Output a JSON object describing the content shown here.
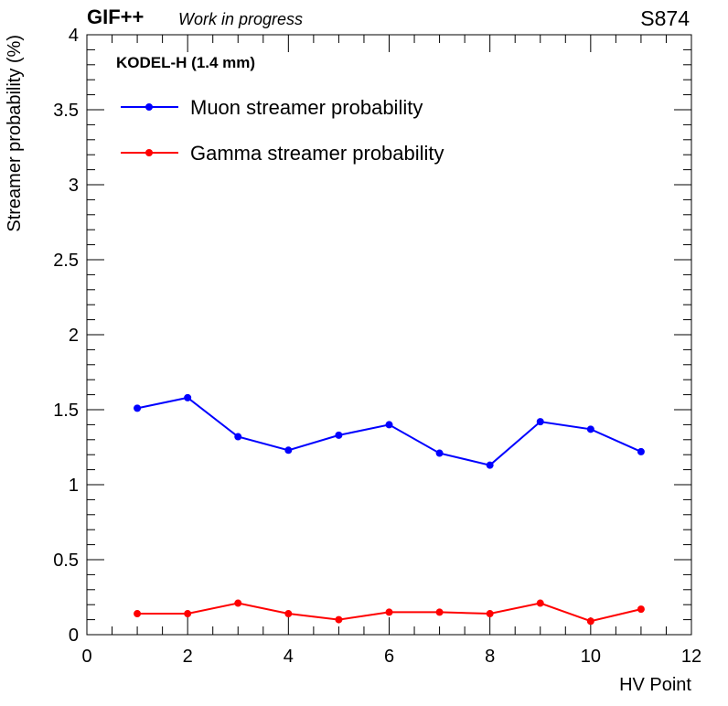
{
  "header": {
    "brand": "GIF++",
    "status": "Work in progress",
    "detector_id": "S874"
  },
  "chart_data": {
    "type": "line",
    "subtitle": "KODEL-H (1.4 mm)",
    "xlabel": "HV Point",
    "ylabel": "Streamer probability (%)",
    "xlim": [
      0,
      12
    ],
    "ylim": [
      0,
      4
    ],
    "x_ticks": [
      0,
      2,
      4,
      6,
      8,
      10,
      12
    ],
    "y_ticks": [
      0,
      0.5,
      1,
      1.5,
      2,
      2.5,
      3,
      3.5,
      4
    ],
    "legend_position": "top-left",
    "grid": false,
    "x": [
      1,
      2,
      3,
      4,
      5,
      6,
      7,
      8,
      9,
      10,
      11
    ],
    "series": [
      {
        "name": "Muon streamer probability",
        "color": "#0000ff",
        "values": [
          1.51,
          1.58,
          1.32,
          1.23,
          1.33,
          1.4,
          1.21,
          1.13,
          1.42,
          1.37,
          1.22
        ]
      },
      {
        "name": "Gamma streamer probability",
        "color": "#ff0000",
        "values": [
          0.14,
          0.14,
          0.21,
          0.14,
          0.1,
          0.15,
          0.15,
          0.14,
          0.21,
          0.09,
          0.17
        ]
      }
    ]
  }
}
